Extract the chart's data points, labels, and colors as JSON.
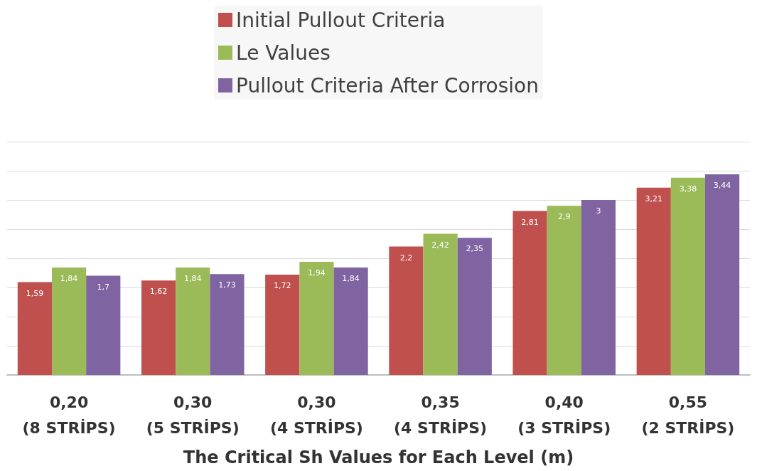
{
  "chart_data": {
    "type": "bar",
    "xlabel": "The Critical Sh Values for Each Level (m)",
    "categories": [
      "0,20\n(8 STRİPS)",
      "0,30\n(5 STRİPS)",
      "0,30\n(4 STRİPS)",
      "0,35\n(4 STRİPS)",
      "0,40\n(3 STRİPS)",
      "0,55\n(2 STRİPS)"
    ],
    "series": [
      {
        "name": "Initial Pullout Criteria",
        "color": "#c0504d",
        "values": [
          1.59,
          1.62,
          1.72,
          2.2,
          2.81,
          3.21
        ],
        "value_labels": [
          "1,59",
          "1,62",
          "1,72",
          "2,2",
          "2,81",
          "3,21"
        ]
      },
      {
        "name": "Le Values",
        "color": "#9bbb59",
        "values": [
          1.84,
          1.84,
          1.94,
          2.42,
          2.9,
          3.38
        ],
        "value_labels": [
          "1,84",
          "1,84",
          "1,94",
          "2,42",
          "2,9",
          "3,38"
        ]
      },
      {
        "name": "Pullout Criteria After Corrosion",
        "color": "#8064a2",
        "values": [
          1.7,
          1.73,
          1.84,
          2.35,
          3,
          3.44
        ],
        "value_labels": [
          "1,7",
          "1,73",
          "1,84",
          "2,35",
          "3",
          "3,44"
        ]
      }
    ],
    "ylim": [
      0,
      4
    ],
    "yticks": [
      {
        "value": 0,
        "label": null
      },
      {
        "value": 0.5,
        "label": null
      },
      {
        "value": 1,
        "label": null
      },
      {
        "value": 1.5,
        "label": null
      },
      {
        "value": 2,
        "label": null
      },
      {
        "value": 2.5,
        "label": null
      },
      {
        "value": 3,
        "label": null
      },
      {
        "value": 3.5,
        "label": null
      },
      {
        "value": 4,
        "label": null
      }
    ],
    "tick_labels": "x",
    "grid": "y",
    "legend": "top"
  }
}
